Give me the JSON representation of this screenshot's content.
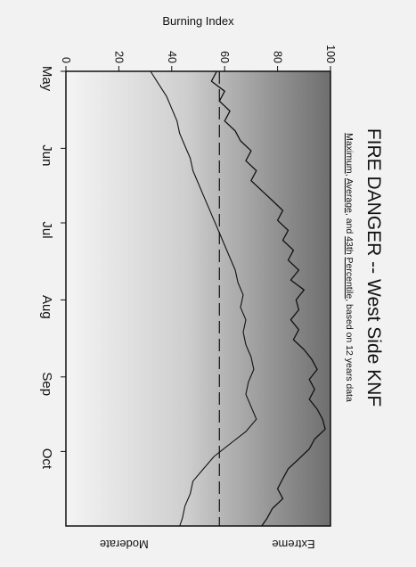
{
  "chart_data": {
    "type": "line",
    "title": "FIRE DANGER -- West Side KNF",
    "subtitle_parts": [
      "Maximum",
      ", ",
      "Average",
      ", and ",
      "43th",
      " ",
      "Percentile",
      ", based on 12 years data"
    ],
    "ylabel": "Burning Index",
    "ylim": [
      0,
      100
    ],
    "yticks": [
      0,
      20,
      40,
      60,
      80,
      100
    ],
    "month_labels": [
      "May",
      "Jun",
      "Jul",
      "Aug",
      "Sep",
      "Oct"
    ],
    "x_unit": "day of season (May 1 = 0)",
    "xlim": [
      0,
      183
    ],
    "month_starts": [
      0,
      31,
      61,
      92,
      123,
      153
    ],
    "zone_labels": {
      "upper": "Extreme",
      "lower": "Moderate"
    },
    "background_gradient": {
      "top": "#6e6e6e",
      "middle": "#cfcfcf",
      "bottom": "#f4f4f4"
    },
    "grid": false,
    "series": [
      {
        "name": "Maximum",
        "style": "solid-jagged",
        "points": [
          [
            0,
            57
          ],
          [
            4,
            55
          ],
          [
            8,
            60
          ],
          [
            12,
            58
          ],
          [
            16,
            62
          ],
          [
            20,
            60
          ],
          [
            24,
            64
          ],
          [
            28,
            66
          ],
          [
            32,
            70
          ],
          [
            36,
            68
          ],
          [
            40,
            72
          ],
          [
            44,
            70
          ],
          [
            48,
            74
          ],
          [
            52,
            78
          ],
          [
            56,
            82
          ],
          [
            60,
            80
          ],
          [
            64,
            84
          ],
          [
            68,
            82
          ],
          [
            72,
            86
          ],
          [
            76,
            84
          ],
          [
            80,
            88
          ],
          [
            84,
            85
          ],
          [
            88,
            90
          ],
          [
            92,
            87
          ],
          [
            96,
            88
          ],
          [
            100,
            85
          ],
          [
            104,
            88
          ],
          [
            108,
            86
          ],
          [
            112,
            90
          ],
          [
            116,
            93
          ],
          [
            120,
            95
          ],
          [
            124,
            92
          ],
          [
            128,
            94
          ],
          [
            132,
            92
          ],
          [
            136,
            95
          ],
          [
            140,
            97
          ],
          [
            144,
            98
          ],
          [
            148,
            94
          ],
          [
            152,
            92
          ],
          [
            156,
            88
          ],
          [
            160,
            84
          ],
          [
            164,
            82
          ],
          [
            168,
            80
          ],
          [
            172,
            82
          ],
          [
            176,
            78
          ],
          [
            180,
            76
          ],
          [
            183,
            74
          ]
        ]
      },
      {
        "name": "Average",
        "style": "solid",
        "points": [
          [
            0,
            32
          ],
          [
            5,
            35
          ],
          [
            10,
            38
          ],
          [
            15,
            40
          ],
          [
            20,
            42
          ],
          [
            25,
            43
          ],
          [
            30,
            45
          ],
          [
            35,
            47
          ],
          [
            40,
            48
          ],
          [
            45,
            50
          ],
          [
            50,
            52
          ],
          [
            55,
            54
          ],
          [
            60,
            56
          ],
          [
            65,
            58
          ],
          [
            70,
            60
          ],
          [
            75,
            62
          ],
          [
            80,
            64
          ],
          [
            85,
            65
          ],
          [
            90,
            67
          ],
          [
            95,
            66
          ],
          [
            100,
            68
          ],
          [
            105,
            67
          ],
          [
            110,
            68
          ],
          [
            115,
            70
          ],
          [
            120,
            71
          ],
          [
            125,
            69
          ],
          [
            130,
            68
          ],
          [
            135,
            70
          ],
          [
            140,
            72
          ],
          [
            145,
            68
          ],
          [
            150,
            62
          ],
          [
            155,
            56
          ],
          [
            160,
            52
          ],
          [
            165,
            48
          ],
          [
            170,
            47
          ],
          [
            175,
            45
          ],
          [
            180,
            44
          ],
          [
            183,
            43
          ]
        ]
      },
      {
        "name": "43th Percentile",
        "style": "dashed",
        "points": [
          [
            0,
            58
          ],
          [
            183,
            58
          ]
        ]
      }
    ]
  }
}
